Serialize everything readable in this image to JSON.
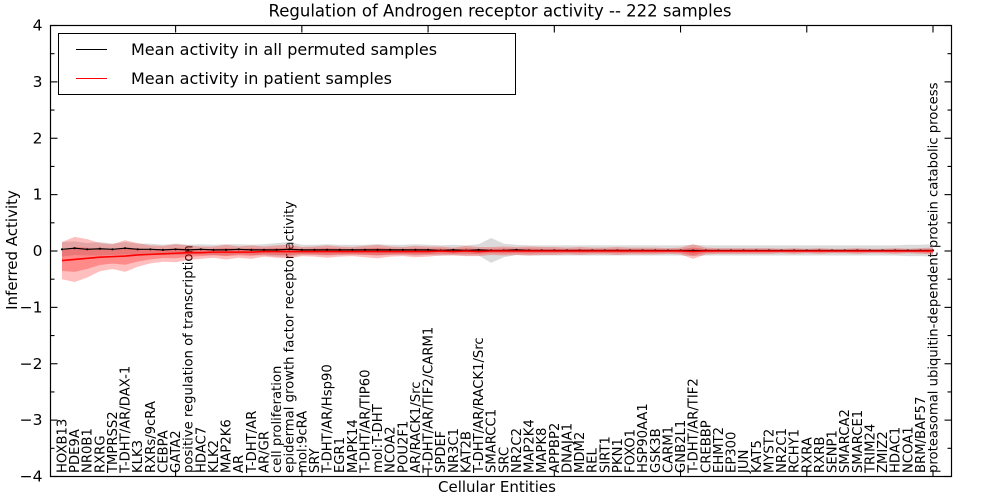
{
  "figure": {
    "title": "Regulation of Androgen receptor activity -- 222 samples",
    "xlabel": "Cellular Entities",
    "ylabel": "Inferred Activity",
    "sample_count": "222"
  },
  "legend": {
    "entries": [
      {
        "label": "Mean activity in all permuted samples",
        "color": "#000000"
      },
      {
        "label": "Mean activity in patient samples",
        "color": "#ff0000"
      }
    ]
  },
  "colors": {
    "permuted_line": "#000000",
    "patient_line": "#ff0000",
    "permuted_band": "#888888",
    "patient_band": "#ff0000",
    "axis": "#000000",
    "background": "#ffffff"
  },
  "chart_data": {
    "type": "line",
    "title": "Regulation of Androgen receptor activity -- 222 samples",
    "xlabel": "Cellular Entities",
    "ylabel": "Inferred Activity",
    "ylim": [
      -4,
      4
    ],
    "yticks": [
      -4,
      -3,
      -2,
      -1,
      0,
      1,
      2,
      3,
      4
    ],
    "y_minor_step": 0.5,
    "x_major_tick_indices": [
      9,
      19,
      29,
      39,
      49,
      59,
      69
    ],
    "grid": false,
    "legend_position": "upper left",
    "categories": [
      "HOXB13",
      "PDE9A",
      "NR0B1",
      "RXRG",
      "TMPRSS2",
      "T-DHT/AR/DAX-1",
      "KLK3",
      "RXRs/9cRA",
      "CEBPA",
      "GATA2",
      "positive regulation of transcription",
      "HDAC7",
      "KLK2",
      "MAP2K6",
      "AR",
      "T-DHT/AR",
      "AR/GR",
      "cell proliferation",
      "epidermal growth factor receptor activity",
      "mol:9cRA",
      "SRY",
      "T-DHT/AR/Hsp90",
      "EGR1",
      "MAPK14",
      "T-DHT/AR/TIP60",
      "mol:T-DHT",
      "NCOA2",
      "POU2F1",
      "AR/RACK1/Src",
      "T-DHT/AR/TIF2/CARM1",
      "SPDEF",
      "NR3C1",
      "KAT2B",
      "T-DHT/AR/RACK1/Src",
      "SMARCC1",
      "SRC",
      "NR2C2",
      "MAP2K4",
      "MAPK8",
      "APPBP2",
      "DNAJA1",
      "MDM2",
      "REL",
      "SIRT1",
      "PKN1",
      "FOXO1",
      "HSP90AA1",
      "GSK3B",
      "CARM1",
      "GNB2L1",
      "T-DHT/AR/TIF2",
      "CREBBP",
      "EHMT2",
      "EP300",
      "JUN",
      "KAT5",
      "MYST2",
      "NR2C1",
      "RCHY1",
      "RXRA",
      "RXRB",
      "SENP1",
      "SMARCA2",
      "SMARCE1",
      "TRIM24",
      "ZMIZ2",
      "HDAC1",
      "NCOA1",
      "BRM/BAF57",
      "proteasomal ubiquitin-dependent protein catabolic process"
    ],
    "series": [
      {
        "name": "Mean activity in all permuted samples",
        "color": "#000000",
        "band_color": "#888888",
        "values": [
          0.03,
          0.05,
          0.03,
          0.04,
          0.03,
          0.05,
          0.03,
          0.03,
          0.02,
          0.03,
          0.02,
          0.03,
          0.02,
          0.02,
          0.03,
          0.02,
          0.02,
          0.02,
          0.03,
          0.02,
          0.02,
          0.02,
          0.02,
          0.02,
          0.02,
          0.02,
          0.02,
          0.02,
          0.02,
          0.02,
          0.01,
          0.02,
          0.01,
          0.02,
          0.01,
          0.01,
          0.02,
          0.01,
          0.01,
          0.01,
          0.01,
          0.01,
          0.01,
          0.01,
          0.01,
          0.01,
          0.01,
          0.01,
          0.01,
          0.01,
          0.01,
          0.01,
          0.01,
          0.01,
          0.01,
          0.01,
          0.01,
          0.01,
          0.01,
          0.01,
          0.01,
          0.01,
          0.01,
          0.01,
          0.01,
          0.01,
          0.01,
          0.01,
          0.01,
          0.01
        ],
        "band_halfwidth": [
          0.13,
          0.12,
          0.11,
          0.12,
          0.1,
          0.11,
          0.1,
          0.1,
          0.09,
          0.1,
          0.09,
          0.09,
          0.09,
          0.1,
          0.09,
          0.09,
          0.1,
          0.12,
          0.13,
          0.09,
          0.09,
          0.1,
          0.09,
          0.09,
          0.09,
          0.1,
          0.09,
          0.09,
          0.1,
          0.09,
          0.09,
          0.09,
          0.09,
          0.1,
          0.22,
          0.12,
          0.09,
          0.09,
          0.09,
          0.09,
          0.09,
          0.09,
          0.09,
          0.09,
          0.09,
          0.09,
          0.09,
          0.09,
          0.09,
          0.09,
          0.1,
          0.09,
          0.09,
          0.09,
          0.09,
          0.09,
          0.09,
          0.09,
          0.09,
          0.09,
          0.09,
          0.09,
          0.09,
          0.09,
          0.09,
          0.09,
          0.09,
          0.1,
          0.1,
          0.11
        ]
      },
      {
        "name": "Mean activity in patient samples",
        "color": "#ff0000",
        "band_color": "#ff0000",
        "values": [
          -0.17,
          -0.15,
          -0.13,
          -0.11,
          -0.1,
          -0.09,
          -0.07,
          -0.06,
          -0.05,
          -0.04,
          -0.03,
          -0.03,
          -0.02,
          -0.02,
          -0.02,
          -0.02,
          -0.01,
          -0.01,
          -0.01,
          -0.01,
          -0.01,
          -0.01,
          -0.01,
          -0.01,
          -0.01,
          -0.01,
          -0.01,
          -0.01,
          -0.01,
          -0.01,
          0.0,
          -0.01,
          0.0,
          -0.01,
          0.0,
          0.0,
          0.0,
          0.0,
          0.0,
          0.0,
          0.0,
          0.0,
          0.0,
          0.0,
          0.0,
          0.0,
          0.0,
          0.0,
          0.0,
          0.0,
          -0.01,
          0.0,
          0.0,
          0.0,
          0.0,
          0.0,
          0.0,
          0.0,
          0.0,
          0.0,
          0.0,
          0.0,
          0.0,
          0.0,
          0.0,
          0.0,
          0.0,
          0.0,
          0.0,
          0.0
        ],
        "band_halfwidth": [
          0.33,
          0.4,
          0.34,
          0.25,
          0.22,
          0.28,
          0.21,
          0.16,
          0.14,
          0.16,
          0.13,
          0.11,
          0.1,
          0.13,
          0.1,
          0.12,
          0.09,
          0.11,
          0.12,
          0.08,
          0.09,
          0.11,
          0.09,
          0.08,
          0.1,
          0.12,
          0.09,
          0.08,
          0.1,
          0.09,
          0.08,
          0.07,
          0.09,
          0.08,
          0.07,
          0.08,
          0.07,
          0.08,
          0.07,
          0.07,
          0.06,
          0.07,
          0.06,
          0.06,
          0.07,
          0.06,
          0.06,
          0.06,
          0.05,
          0.06,
          0.13,
          0.06,
          0.05,
          0.05,
          0.05,
          0.05,
          0.05,
          0.04,
          0.05,
          0.04,
          0.05,
          0.04,
          0.04,
          0.05,
          0.04,
          0.04,
          0.05,
          0.04,
          0.05,
          0.06
        ]
      }
    ]
  }
}
